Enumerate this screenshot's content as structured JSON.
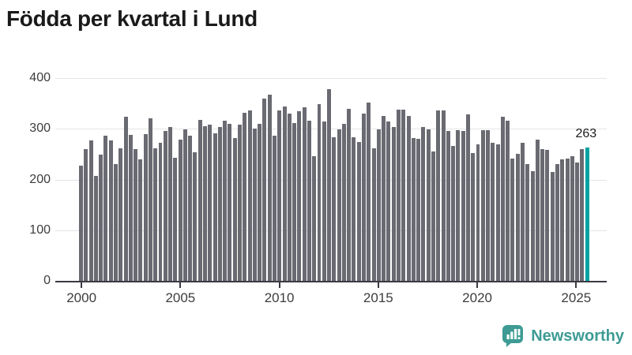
{
  "title": "Födda per kvartal i Lund",
  "chart_data": {
    "type": "bar",
    "title": "Födda per kvartal i Lund",
    "x_start": "2000 Q1",
    "x_end": "2025 Q3",
    "values": [
      227,
      260,
      277,
      207,
      249,
      286,
      277,
      230,
      262,
      323,
      288,
      260,
      240,
      290,
      321,
      261,
      273,
      295,
      304,
      243,
      278,
      299,
      286,
      253,
      317,
      305,
      308,
      291,
      304,
      316,
      310,
      282,
      308,
      332,
      336,
      300,
      309,
      360,
      367,
      286,
      336,
      344,
      330,
      312,
      334,
      343,
      316,
      246,
      349,
      315,
      379,
      283,
      299,
      310,
      339,
      283,
      274,
      330,
      351,
      261,
      299,
      325,
      314,
      304,
      337,
      337,
      326,
      281,
      280,
      304,
      299,
      255,
      336,
      336,
      295,
      266,
      297,
      296,
      329,
      252,
      269,
      297,
      297,
      272,
      269,
      323,
      316,
      242,
      251,
      273,
      231,
      217,
      278,
      260,
      259,
      215,
      231,
      239,
      242,
      246,
      233,
      260,
      263
    ],
    "highlight_last": true,
    "highlight_label": "263",
    "ylim": [
      0,
      400
    ],
    "y_ticks": [
      0,
      100,
      200,
      300,
      400
    ],
    "x_ticks": [
      "2000",
      "2005",
      "2010",
      "2015",
      "2020",
      "2025"
    ],
    "x_tick_start_year": 2000,
    "quarters_per_year": 4,
    "grid": true,
    "legend": "none",
    "bar_color": "#6a6a72",
    "highlight_color": "#00a2a2"
  },
  "branding": {
    "name": "Newsworthy",
    "text_color": "#3d9b94",
    "icon": "bar-chart-speech-bubble-icon"
  }
}
